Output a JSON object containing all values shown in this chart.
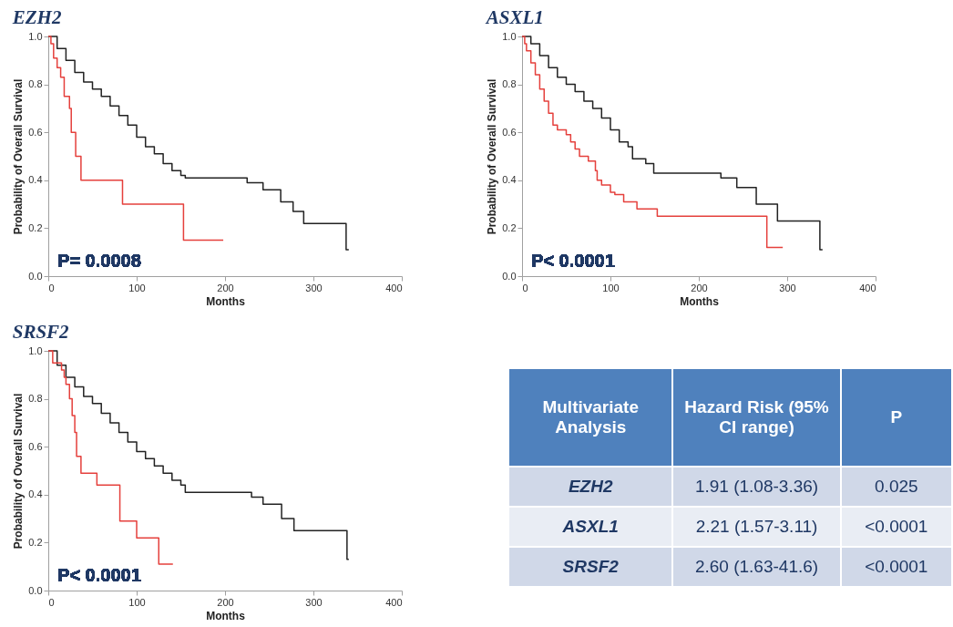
{
  "chart_data": [
    {
      "type": "step",
      "title": "EZH2",
      "xlabel": "Months",
      "ylabel": "Probability of Overall Survival",
      "xlim": [
        0,
        400
      ],
      "xticks": [
        0,
        100,
        200,
        300,
        400
      ],
      "ylim": [
        0,
        1
      ],
      "yticks": [
        {
          "value": 0,
          "label": "0.0"
        },
        {
          "value": 0.2,
          "label": "0.2"
        },
        {
          "value": 0.4,
          "label": "0.4"
        },
        {
          "value": 0.6,
          "label": "0.6"
        },
        {
          "value": 0.8,
          "label": "0.8"
        },
        {
          "value": 1,
          "label": "1.0"
        }
      ],
      "grid": false,
      "legend": false,
      "annotations": [
        "P= 0.0008"
      ],
      "series": [
        {
          "color": "#222222",
          "x": [
            0,
            10,
            20,
            30,
            40,
            50,
            60,
            70,
            80,
            90,
            100,
            110,
            120,
            130,
            140,
            150,
            155,
            225,
            243,
            263,
            277,
            289,
            337,
            340
          ],
          "values": [
            1.0,
            0.95,
            0.9,
            0.85,
            0.81,
            0.78,
            0.75,
            0.71,
            0.67,
            0.63,
            0.58,
            0.54,
            0.51,
            0.47,
            0.44,
            0.42,
            0.41,
            0.39,
            0.36,
            0.31,
            0.27,
            0.22,
            0.11,
            0.11
          ]
        },
        {
          "color": "#e5403c",
          "x": [
            0,
            3,
            6,
            10,
            14,
            18,
            24,
            26,
            31,
            37,
            84,
            153,
            198
          ],
          "values": [
            1.0,
            0.97,
            0.91,
            0.87,
            0.83,
            0.75,
            0.7,
            0.6,
            0.5,
            0.4,
            0.3,
            0.15,
            0.15
          ]
        }
      ]
    },
    {
      "type": "step",
      "title": "ASXL1",
      "xlabel": "Months",
      "ylabel": "Probability of Overall Survival",
      "xlim": [
        0,
        400
      ],
      "xticks": [
        0,
        100,
        200,
        300,
        400
      ],
      "ylim": [
        0,
        1
      ],
      "yticks": [
        {
          "value": 0,
          "label": "0.0"
        },
        {
          "value": 0.2,
          "label": "0.2"
        },
        {
          "value": 0.4,
          "label": "0.4"
        },
        {
          "value": 0.6,
          "label": "0.6"
        },
        {
          "value": 0.8,
          "label": "0.8"
        },
        {
          "value": 1,
          "label": "1.0"
        }
      ],
      "grid": false,
      "legend": false,
      "annotations": [
        "P< 0.0001"
      ],
      "series": [
        {
          "color": "#222222",
          "x": [
            0,
            10,
            20,
            30,
            40,
            50,
            60,
            70,
            80,
            90,
            100,
            110,
            120,
            125,
            140,
            149,
            225,
            243,
            265,
            289,
            337,
            340
          ],
          "values": [
            1.0,
            0.97,
            0.92,
            0.87,
            0.83,
            0.8,
            0.77,
            0.73,
            0.7,
            0.66,
            0.61,
            0.56,
            0.54,
            0.49,
            0.47,
            0.43,
            0.41,
            0.37,
            0.3,
            0.23,
            0.11,
            0.11
          ]
        },
        {
          "color": "#e5403c",
          "x": [
            0,
            3,
            5,
            10,
            15,
            20,
            25,
            30,
            35,
            40,
            50,
            55,
            60,
            65,
            75,
            83,
            85,
            90,
            100,
            105,
            115,
            130,
            153,
            277,
            295
          ],
          "values": [
            1.0,
            0.97,
            0.94,
            0.89,
            0.84,
            0.78,
            0.73,
            0.68,
            0.63,
            0.61,
            0.59,
            0.56,
            0.53,
            0.5,
            0.48,
            0.44,
            0.4,
            0.38,
            0.35,
            0.34,
            0.31,
            0.28,
            0.25,
            0.12,
            0.12
          ]
        }
      ]
    },
    {
      "type": "step",
      "title": "SRSF2",
      "xlabel": "Months",
      "ylabel": "Probability of Overall Survival",
      "xlim": [
        0,
        400
      ],
      "xticks": [
        0,
        100,
        200,
        300,
        400
      ],
      "ylim": [
        0,
        1
      ],
      "yticks": [
        {
          "value": 0,
          "label": "0.0"
        },
        {
          "value": 0.2,
          "label": "0.2"
        },
        {
          "value": 0.4,
          "label": "0.4"
        },
        {
          "value": 0.6,
          "label": "0.6"
        },
        {
          "value": 0.8,
          "label": "0.8"
        },
        {
          "value": 1,
          "label": "1.0"
        }
      ],
      "grid": false,
      "legend": false,
      "annotations": [
        "P< 0.0001"
      ],
      "series": [
        {
          "color": "#222222",
          "x": [
            0,
            10,
            20,
            30,
            40,
            50,
            60,
            70,
            80,
            90,
            100,
            110,
            120,
            130,
            140,
            150,
            155,
            230,
            243,
            264,
            278,
            338,
            340
          ],
          "values": [
            1.0,
            0.94,
            0.89,
            0.85,
            0.81,
            0.78,
            0.74,
            0.7,
            0.66,
            0.62,
            0.58,
            0.55,
            0.52,
            0.49,
            0.46,
            0.44,
            0.41,
            0.39,
            0.36,
            0.3,
            0.25,
            0.13,
            0.13
          ]
        },
        {
          "color": "#e5403c",
          "x": [
            0,
            5,
            15,
            18,
            20,
            24,
            27,
            30,
            32,
            37,
            55,
            81,
            100,
            125,
            141
          ],
          "values": [
            1.0,
            0.95,
            0.92,
            0.89,
            0.86,
            0.8,
            0.73,
            0.66,
            0.56,
            0.49,
            0.44,
            0.29,
            0.22,
            0.11,
            0.11
          ]
        }
      ]
    },
    {
      "type": "other",
      "categories": [
        "Multivariate Analysis",
        "Hazard Risk (95% CI range)",
        "P"
      ],
      "y_categories": [
        "EZH2",
        "ASXL1",
        "SRSF2"
      ],
      "cell_labels": [
        [
          "1.91 (1.08-3.36)",
          "0.025"
        ],
        [
          "2.21 (1.57-3.11)",
          "<0.0001"
        ],
        [
          "2.60 (1.63-41.6)",
          "<0.0001"
        ]
      ]
    }
  ]
}
